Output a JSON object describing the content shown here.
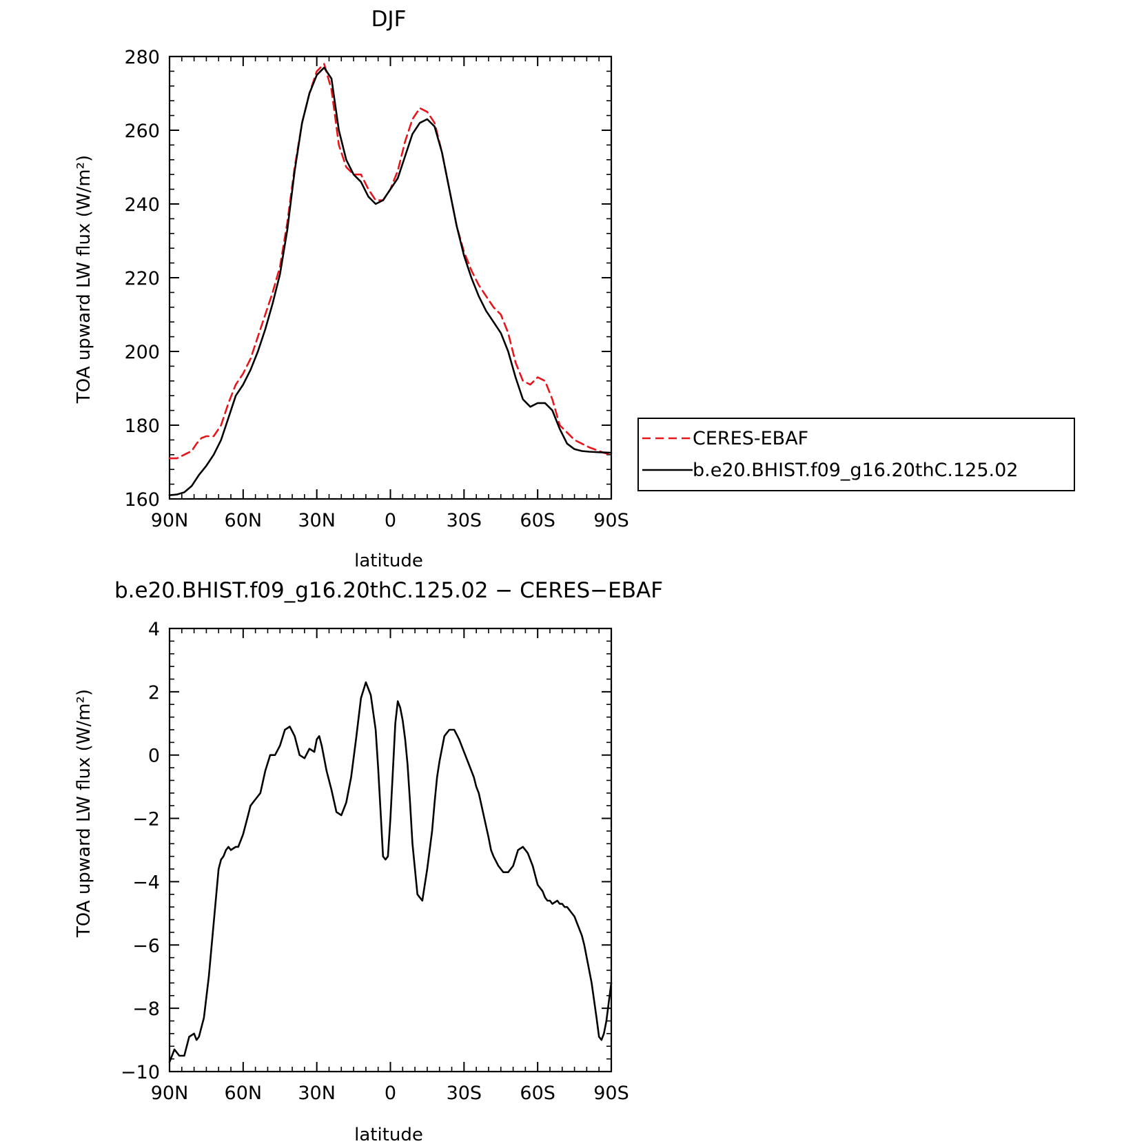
{
  "chart_data": [
    {
      "type": "line",
      "title": "DJF",
      "xlabel": "latitude",
      "ylabel": "TOA upward LW flux (W/m²)",
      "xlim": [
        90,
        -90
      ],
      "ylim": [
        160,
        280
      ],
      "xticks": [
        90,
        60,
        30,
        0,
        -30,
        -60,
        -90
      ],
      "xtick_labels": [
        "90N",
        "60N",
        "30N",
        "0",
        "30S",
        "60S",
        "90S"
      ],
      "yticks": [
        160,
        180,
        200,
        220,
        240,
        260,
        280
      ],
      "ytick_labels": [
        "160",
        "180",
        "200",
        "220",
        "240",
        "260",
        "280"
      ],
      "legend_position": "right",
      "series": [
        {
          "name": "CERES-EBAF",
          "color": "#e8141b",
          "dash": "dashed",
          "x": [
            90,
            87,
            84,
            81,
            79,
            77,
            75,
            72,
            69,
            66,
            63,
            60,
            57,
            54,
            51,
            48,
            45,
            42,
            39,
            36,
            33,
            30,
            27,
            24,
            21,
            18,
            15,
            12,
            9,
            6,
            3,
            0,
            -3,
            -6,
            -9,
            -12,
            -15,
            -18,
            -21,
            -24,
            -27,
            -30,
            -33,
            -36,
            -39,
            -42,
            -45,
            -48,
            -51,
            -54,
            -57,
            -60,
            -63,
            -66,
            -69,
            -72,
            -75,
            -78,
            -81,
            -83,
            -85,
            -87,
            -90
          ],
          "y": [
            171,
            171,
            172,
            173,
            175,
            176.5,
            177,
            177,
            180,
            186,
            191,
            194,
            198,
            204,
            210,
            216,
            223,
            235,
            250,
            262,
            270,
            276,
            278,
            271,
            256,
            250,
            248,
            248,
            244,
            241,
            241,
            244,
            249,
            257,
            263,
            266,
            265,
            262,
            254,
            244,
            234,
            227,
            222,
            218,
            215,
            212,
            210,
            205,
            197,
            192,
            191,
            193,
            192,
            187,
            180,
            178,
            176,
            175,
            174,
            173.5,
            173,
            172.5,
            172
          ]
        },
        {
          "name": "b.e20.BHIST.f09_g16.20thC.125.02",
          "color": "#000000",
          "dash": "solid",
          "x": [
            90,
            87,
            84,
            81,
            78,
            75,
            72,
            69,
            66,
            63,
            60,
            57,
            54,
            51,
            48,
            45,
            42,
            39,
            36,
            33,
            30,
            27,
            24,
            21,
            18,
            15,
            12,
            9,
            6,
            3,
            0,
            -3,
            -6,
            -9,
            -12,
            -15,
            -18,
            -21,
            -24,
            -27,
            -30,
            -33,
            -36,
            -39,
            -42,
            -45,
            -48,
            -51,
            -54,
            -57,
            -60,
            -63,
            -66,
            -69,
            -72,
            -75,
            -78,
            -81,
            -84,
            -87,
            -90
          ],
          "y": [
            161,
            161.2,
            161.8,
            163.5,
            166.5,
            169,
            172,
            176,
            182,
            188,
            191,
            195,
            200,
            206,
            213,
            221,
            233,
            249,
            262,
            270,
            275,
            277,
            274,
            260,
            252,
            248,
            246,
            242,
            240,
            241,
            244,
            247,
            253,
            259,
            262,
            263,
            261,
            254,
            244,
            234,
            226,
            220,
            215,
            211,
            208,
            205,
            200,
            193,
            187,
            185,
            186,
            186,
            184,
            179,
            175,
            173.5,
            173,
            172.8,
            172.7,
            172.6,
            172.5
          ]
        }
      ]
    },
    {
      "type": "line",
      "title": "b.e20.BHIST.f09_g16.20thC.125.02 − CERES−EBAF",
      "xlabel": "latitude",
      "ylabel": "TOA upward LW flux (W/m²)",
      "xlim": [
        90,
        -90
      ],
      "ylim": [
        -10,
        4
      ],
      "xticks": [
        90,
        60,
        30,
        0,
        -30,
        -60,
        -90
      ],
      "xtick_labels": [
        "90N",
        "60N",
        "30N",
        "0",
        "30S",
        "60S",
        "90S"
      ],
      "yticks": [
        -10,
        -8,
        -6,
        -4,
        -2,
        0,
        2,
        4
      ],
      "ytick_labels": [
        "−10",
        "−8",
        "−6",
        "−4",
        "−2",
        "0",
        "2",
        "4"
      ],
      "series": [
        {
          "color": "#000000",
          "dash": "solid",
          "x": [
            90,
            88,
            86,
            84,
            82,
            80,
            79,
            78,
            77,
            76,
            74,
            72,
            70,
            69,
            68,
            67,
            66,
            65,
            63,
            62,
            61,
            60,
            59,
            58,
            57,
            55,
            53,
            51,
            49,
            47,
            45,
            43,
            41,
            39,
            37,
            35,
            33,
            31,
            30,
            29,
            28,
            26,
            24,
            22,
            20,
            18,
            16,
            14,
            12,
            10,
            8,
            6,
            5,
            4,
            3,
            2,
            1,
            0,
            -1,
            -2,
            -3,
            -4,
            -5,
            -6,
            -7,
            -8,
            -9,
            -11,
            -13,
            -15,
            -17,
            -18,
            -19,
            -20,
            -22,
            -24,
            -26,
            -28,
            -30,
            -32,
            -34,
            -35,
            -36,
            -38,
            -40,
            -41,
            -42,
            -44,
            -46,
            -48,
            -50,
            -52,
            -54,
            -56,
            -58,
            -60,
            -62,
            -63,
            -64,
            -65,
            -66,
            -68,
            -69,
            -70,
            -71,
            -72,
            -73,
            -74,
            -75,
            -76,
            -77,
            -78,
            -79,
            -80,
            -82,
            -84,
            -85,
            -86,
            -87,
            -88,
            -89,
            -90
          ],
          "y": [
            -9.7,
            -9.3,
            -9.5,
            -9.5,
            -8.9,
            -8.8,
            -9.0,
            -8.9,
            -8.6,
            -8.3,
            -7.0,
            -5.3,
            -3.6,
            -3.3,
            -3.2,
            -3.0,
            -2.9,
            -3.0,
            -2.9,
            -2.9,
            -2.7,
            -2.5,
            -2.2,
            -1.9,
            -1.6,
            -1.4,
            -1.2,
            -0.5,
            0.0,
            0.0,
            0.3,
            0.8,
            0.9,
            0.6,
            0.0,
            -0.1,
            0.2,
            0.1,
            0.5,
            0.6,
            0.3,
            -0.5,
            -1.1,
            -1.8,
            -1.9,
            -1.5,
            -0.7,
            0.5,
            1.8,
            2.3,
            1.9,
            0.8,
            -0.4,
            -1.8,
            -3.2,
            -3.3,
            -3.2,
            -2.0,
            -0.5,
            1.0,
            1.7,
            1.5,
            1.1,
            0.5,
            -0.3,
            -1.5,
            -2.8,
            -4.4,
            -4.6,
            -3.6,
            -2.4,
            -1.5,
            -0.7,
            -0.2,
            0.6,
            0.8,
            0.8,
            0.5,
            0.1,
            -0.3,
            -0.7,
            -1.0,
            -1.2,
            -1.9,
            -2.6,
            -3.0,
            -3.2,
            -3.5,
            -3.7,
            -3.7,
            -3.5,
            -3.0,
            -2.9,
            -3.1,
            -3.5,
            -4.1,
            -4.3,
            -4.5,
            -4.6,
            -4.6,
            -4.7,
            -4.6,
            -4.7,
            -4.7,
            -4.8,
            -4.8,
            -4.9,
            -5.0,
            -5.1,
            -5.3,
            -5.5,
            -5.7,
            -6.0,
            -6.4,
            -7.2,
            -8.3,
            -8.9,
            -9.0,
            -8.8,
            -8.4,
            -7.8,
            -7.2
          ]
        }
      ]
    }
  ],
  "legend": {
    "entries": [
      "CERES-EBAF",
      "b.e20.BHIST.f09_g16.20thC.125.02"
    ]
  }
}
